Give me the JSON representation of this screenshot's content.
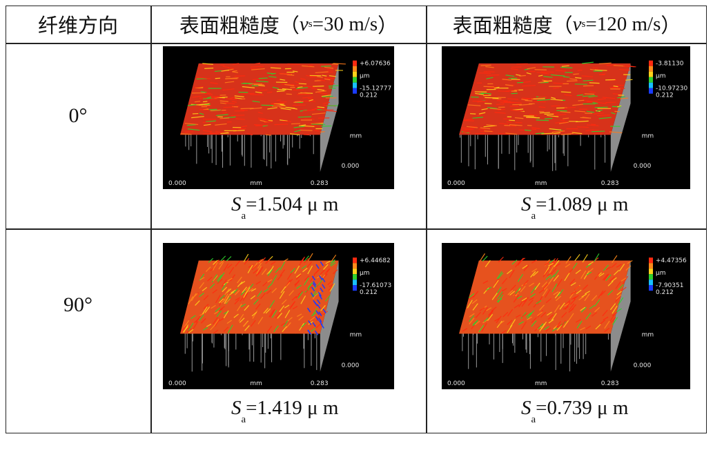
{
  "header": {
    "fiber_direction": "纤维方向",
    "roughness_label": "表面粗糙度",
    "speed_symbol": "v",
    "speed_subscript": "s",
    "col1_speed": "=30 m/s",
    "col2_speed": "=120 m/s",
    "open_paren": "（",
    "close_paren": "）"
  },
  "rows": [
    {
      "angle": "0°",
      "cells": [
        {
          "sa_value": "=1.504 μ m",
          "scale_max": "+6.07636",
          "unit": "μm",
          "scale_min": "-15.12777",
          "y_extent": "0.212"
        },
        {
          "sa_value": "=1.089 μ m",
          "scale_max": "-3.81130",
          "unit": "μm",
          "scale_min": "-10.97230",
          "y_extent": "0.212"
        }
      ]
    },
    {
      "angle": "90°",
      "cells": [
        {
          "sa_value": "=1.419 μ m",
          "scale_max": "+6.44682",
          "unit": "μm",
          "scale_min": "-17.61073",
          "y_extent": "0.212"
        },
        {
          "sa_value": "=0.739 μ m",
          "scale_max": "+4.47356",
          "unit": "μm",
          "scale_min": "-7.90351",
          "y_extent": "0.212"
        }
      ]
    }
  ],
  "axis": {
    "x_start": "0.000",
    "x_unit": "mm",
    "x_end": "0.283",
    "y_unit": "mm",
    "y_start": "0.000"
  },
  "sa_symbol": "S",
  "sa_subscript": "a",
  "colors": {
    "high": "#ff2a10",
    "mid": "#ffd21a",
    "low": "#1a3cff",
    "green": "#2fd12f"
  }
}
